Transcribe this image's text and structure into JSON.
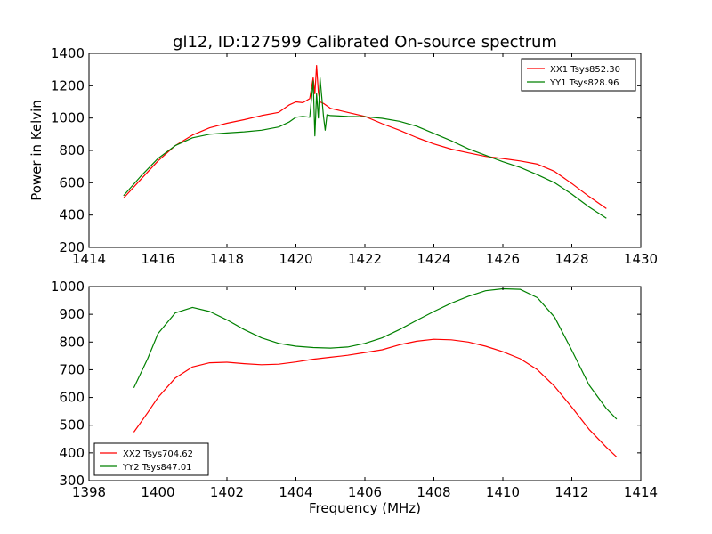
{
  "chart_data": [
    {
      "type": "line",
      "title": "gl12, ID:127599 Calibrated On-source spectrum",
      "xlabel": "",
      "ylabel": "Power in Kelvin",
      "xlim": [
        1414,
        1430
      ],
      "ylim": [
        200,
        1400
      ],
      "x_ticks": [
        1414,
        1416,
        1418,
        1420,
        1422,
        1424,
        1426,
        1428,
        1430
      ],
      "y_ticks": [
        200,
        400,
        600,
        800,
        1000,
        1200,
        1400
      ],
      "grid": false,
      "legend_position": "top-right",
      "series": [
        {
          "name": "XX1 Tsys852.30",
          "color": "#ff0000",
          "x": [
            1415.0,
            1415.5,
            1416.0,
            1416.5,
            1417.0,
            1417.5,
            1418.0,
            1418.5,
            1419.0,
            1419.5,
            1419.8,
            1420.0,
            1420.2,
            1420.4,
            1420.5,
            1420.55,
            1420.6,
            1420.65,
            1420.7,
            1420.8,
            1421.0,
            1421.5,
            1422.0,
            1422.5,
            1423.0,
            1423.5,
            1424.0,
            1424.5,
            1425.0,
            1425.5,
            1426.0,
            1426.5,
            1427.0,
            1427.5,
            1428.0,
            1428.5,
            1429.0
          ],
          "y": [
            505,
            620,
            735,
            830,
            895,
            940,
            968,
            990,
            1015,
            1035,
            1080,
            1100,
            1095,
            1120,
            1250,
            1150,
            1325,
            1160,
            1100,
            1090,
            1060,
            1035,
            1010,
            965,
            925,
            880,
            840,
            808,
            785,
            763,
            750,
            735,
            715,
            670,
            595,
            515,
            440
          ]
        },
        {
          "name": "YY1 Tsys828.96",
          "color": "#008000",
          "x": [
            1415.0,
            1415.5,
            1416.0,
            1416.5,
            1417.0,
            1417.5,
            1418.0,
            1418.5,
            1419.0,
            1419.5,
            1419.8,
            1420.0,
            1420.2,
            1420.4,
            1420.5,
            1420.55,
            1420.6,
            1420.65,
            1420.7,
            1420.8,
            1420.85,
            1420.9,
            1421.0,
            1421.5,
            1422.0,
            1422.5,
            1423.0,
            1423.5,
            1424.0,
            1424.5,
            1425.0,
            1425.5,
            1426.0,
            1426.5,
            1427.0,
            1427.5,
            1428.0,
            1428.5,
            1429.0
          ],
          "y": [
            520,
            640,
            750,
            830,
            878,
            900,
            908,
            915,
            925,
            945,
            975,
            1005,
            1010,
            1005,
            1230,
            890,
            1150,
            1000,
            1250,
            1010,
            925,
            1020,
            1015,
            1010,
            1008,
            998,
            980,
            950,
            905,
            860,
            810,
            770,
            730,
            695,
            650,
            600,
            530,
            450,
            380
          ]
        }
      ]
    },
    {
      "type": "line",
      "title": "",
      "xlabel": "Frequency (MHz)",
      "ylabel": "",
      "xlim": [
        1398,
        1414
      ],
      "ylim": [
        300,
        1000
      ],
      "x_ticks": [
        1398,
        1400,
        1402,
        1404,
        1406,
        1408,
        1410,
        1412,
        1414
      ],
      "y_ticks": [
        300,
        400,
        500,
        600,
        700,
        800,
        900,
        1000
      ],
      "grid": false,
      "legend_position": "bottom-left",
      "series": [
        {
          "name": "XX2 Tsys704.62",
          "color": "#ff0000",
          "x": [
            1399.3,
            1399.7,
            1400.0,
            1400.5,
            1401.0,
            1401.5,
            1402.0,
            1402.5,
            1403.0,
            1403.5,
            1404.0,
            1404.5,
            1405.0,
            1405.5,
            1406.0,
            1406.5,
            1407.0,
            1407.5,
            1408.0,
            1408.5,
            1409.0,
            1409.5,
            1410.0,
            1410.5,
            1411.0,
            1411.5,
            1412.0,
            1412.5,
            1413.0,
            1413.3
          ],
          "y": [
            475,
            545,
            600,
            670,
            710,
            725,
            727,
            722,
            718,
            720,
            728,
            738,
            745,
            752,
            762,
            772,
            790,
            803,
            810,
            808,
            800,
            785,
            765,
            740,
            700,
            640,
            565,
            485,
            420,
            385
          ]
        },
        {
          "name": "YY2 Tsys847.01",
          "color": "#008000",
          "x": [
            1399.3,
            1399.7,
            1400.0,
            1400.5,
            1401.0,
            1401.5,
            1402.0,
            1402.5,
            1403.0,
            1403.5,
            1404.0,
            1404.5,
            1405.0,
            1405.5,
            1406.0,
            1406.5,
            1407.0,
            1407.5,
            1408.0,
            1408.5,
            1409.0,
            1409.5,
            1410.0,
            1410.5,
            1411.0,
            1411.5,
            1412.0,
            1412.5,
            1413.0,
            1413.3
          ],
          "y": [
            635,
            740,
            830,
            905,
            925,
            910,
            880,
            845,
            815,
            795,
            785,
            780,
            778,
            782,
            795,
            815,
            845,
            878,
            910,
            940,
            965,
            985,
            992,
            990,
            960,
            890,
            770,
            645,
            560,
            522
          ]
        }
      ]
    }
  ]
}
